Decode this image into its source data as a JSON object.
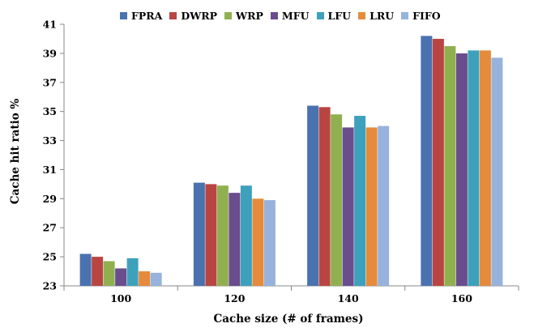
{
  "chart_data": {
    "type": "bar",
    "title": "",
    "xlabel": "Cache size (# of frames)",
    "ylabel": "Cache hit ratio %",
    "categories": [
      "100",
      "120",
      "140",
      "160"
    ],
    "ylim": [
      23,
      41
    ],
    "yticks": [
      "23",
      "25",
      "27",
      "29",
      "31",
      "33",
      "35",
      "37",
      "39",
      "41"
    ],
    "grid": false,
    "legend_position": "top",
    "series": [
      {
        "name": "FPRA",
        "color": "#4a72b0",
        "values": [
          25.2,
          30.1,
          35.4,
          40.2
        ]
      },
      {
        "name": "DWRP",
        "color": "#b94542",
        "values": [
          25.0,
          30.0,
          35.3,
          40.0
        ]
      },
      {
        "name": "WRP",
        "color": "#90b050",
        "values": [
          24.7,
          29.9,
          34.8,
          39.5
        ]
      },
      {
        "name": "MFU",
        "color": "#6a4d8d",
        "values": [
          24.2,
          29.4,
          33.9,
          39.0
        ]
      },
      {
        "name": "LFU",
        "color": "#3ea1bb",
        "values": [
          24.9,
          29.9,
          34.7,
          39.2
        ]
      },
      {
        "name": "LRU",
        "color": "#e58b3b",
        "values": [
          24.0,
          29.0,
          33.9,
          39.2
        ]
      },
      {
        "name": "FIFO",
        "color": "#97b2dc",
        "values": [
          23.9,
          28.9,
          34.0,
          38.7
        ]
      }
    ]
  }
}
